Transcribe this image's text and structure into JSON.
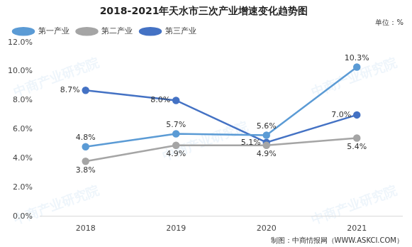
{
  "chart_data": {
    "type": "line",
    "title": "2018-2021年天水市三次产业增速变化趋势图",
    "annotations": [
      "单位：%",
      "制图：中商情报网（WWW.ASKCI.COM）"
    ],
    "watermark": "中商产业研究院",
    "categories": [
      "2018",
      "2019",
      "2020",
      "2021"
    ],
    "series": [
      {
        "name": "第一产业",
        "color": "#5b9bd5",
        "marker": "circle",
        "values": [
          4.8,
          5.7,
          5.6,
          10.3
        ],
        "value_labels": [
          "4.8%",
          "5.7%",
          "5.6%",
          "10.3%"
        ]
      },
      {
        "name": "第二产业",
        "color": "#a5a5a5",
        "marker": "circle",
        "values": [
          3.8,
          4.9,
          4.9,
          5.4
        ],
        "value_labels": [
          "3.8%",
          "4.9%",
          "4.9%",
          "5.4%"
        ]
      },
      {
        "name": "第三产业",
        "color": "#4472c4",
        "marker": "circle",
        "values": [
          8.7,
          8.0,
          5.1,
          7.0
        ],
        "value_labels": [
          "8.7%",
          "8.0%",
          "5.1%",
          "7.0%"
        ]
      }
    ],
    "ylim": [
      0,
      12
    ],
    "yticks": [
      {
        "value": 0,
        "label": "0.0%"
      },
      {
        "value": 2,
        "label": "2.0%"
      },
      {
        "value": 4,
        "label": "4.0%"
      },
      {
        "value": 6,
        "label": "6.0%"
      },
      {
        "value": 8,
        "label": "8.0%"
      },
      {
        "value": 10,
        "label": "10.0%"
      },
      {
        "value": 12,
        "label": "12.0%"
      }
    ],
    "grid": false,
    "legend": "top-left",
    "data_labels": true
  }
}
